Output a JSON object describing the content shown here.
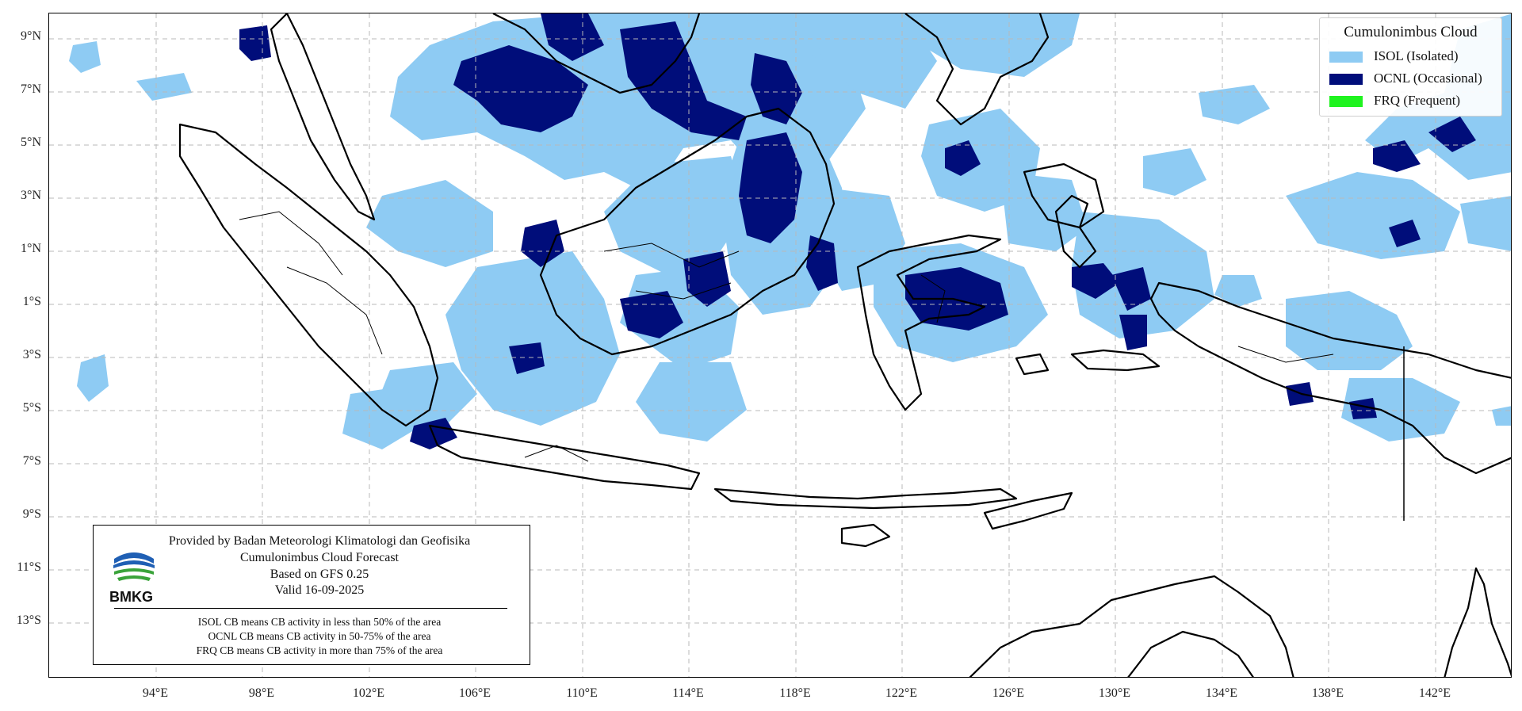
{
  "map": {
    "lat_labels": [
      "9°N",
      "7°N",
      "5°N",
      "3°N",
      "1°N",
      "1°S",
      "3°S",
      "5°S",
      "7°S",
      "9°S",
      "11°S",
      "13°S"
    ],
    "lon_labels": [
      "94°E",
      "98°E",
      "102°E",
      "106°E",
      "110°E",
      "114°E",
      "118°E",
      "122°E",
      "126°E",
      "130°E",
      "134°E",
      "138°E",
      "142°E"
    ]
  },
  "legend": {
    "title": "Cumulonimbus Cloud",
    "items": [
      {
        "label": "ISOL (Isolated)",
        "color": "#8ecbf3"
      },
      {
        "label": "OCNL (Occasional)",
        "color": "#000d7a"
      },
      {
        "label": "FRQ (Frequent)",
        "color": "#1ff31f"
      }
    ]
  },
  "info": {
    "provider": "Provided by Badan Meteorologi Klimatologi dan Geofisika",
    "product": "Cumulonimbus Cloud Forecast",
    "model": "Based on GFS 0.25",
    "valid": "Valid 16-09-2025",
    "logo_text": "BMKG",
    "notes": [
      "ISOL CB means CB activity in less than 50% of the area",
      "OCNL CB means CB activity in 50-75% of the area",
      "FRQ CB means CB activity in more than 75% of the area"
    ]
  },
  "colors": {
    "isol": "#8ecbf3",
    "ocnl": "#000d7a",
    "frq": "#1ff31f",
    "coast": "#000000",
    "grid": "#b8b8b8"
  }
}
